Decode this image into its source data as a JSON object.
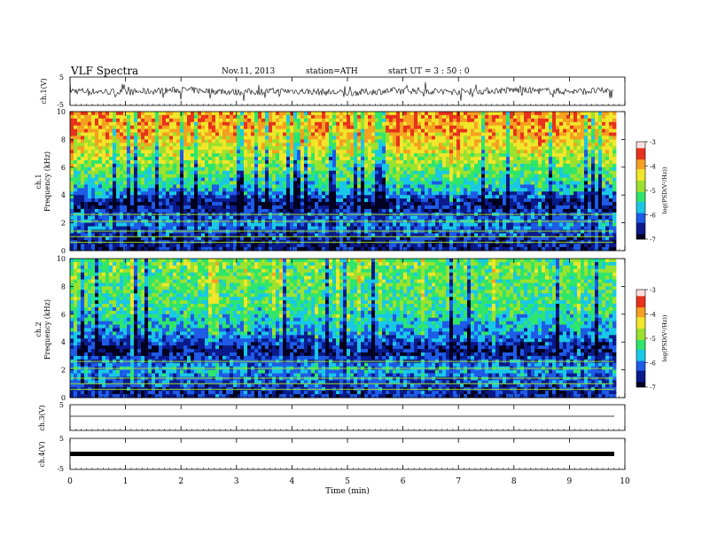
{
  "header": {
    "title": "VLF  Spectra",
    "date": "Nov.11, 2013",
    "station": "station=ATH",
    "start": "start  UT  =   3 : 50 : 0"
  },
  "colors": {
    "colormap": [
      "#000020",
      "#0a1a8a",
      "#1e5be6",
      "#19c8e6",
      "#2ee66b",
      "#9be22e",
      "#f0e62a",
      "#f5a020",
      "#e8321c",
      "#ffffff"
    ],
    "trace": "#000000"
  },
  "chart_data": [
    {
      "type": "line",
      "name": "ch1-waveform",
      "ylabel": "ch.1(V)",
      "ylim": [
        -5,
        5
      ],
      "yticks": [
        "-5",
        "5"
      ],
      "x": [
        0,
        1,
        2,
        3,
        4,
        5,
        6,
        7,
        8,
        9,
        9.8
      ],
      "y": [
        0.2,
        -0.4,
        0.5,
        -0.3,
        0.1,
        -0.6,
        0.3,
        -0.2,
        0.4,
        -0.1,
        0.2
      ]
    },
    {
      "type": "heatmap",
      "name": "ch1-spectrogram",
      "ylabel": "Frequency (kHz)",
      "sublabel": "ch.1",
      "ylim": [
        0,
        10
      ],
      "yticks": [
        "0",
        "2",
        "4",
        "6",
        "8",
        "10"
      ],
      "x_range_min": [
        0,
        9.8
      ],
      "colorbar": {
        "label": "log(PSD(V²/Hz))",
        "range": [
          -7,
          -3
        ],
        "ticks": [
          "-3",
          "-4",
          "-5",
          "-6",
          "-7"
        ]
      },
      "freq_bands_kHz": [
        0.5,
        1.2,
        2.0,
        3.4,
        4.5,
        6.5,
        8.5
      ],
      "band_log_psd": [
        -6.5,
        -6.2,
        -5.8,
        -6.6,
        -5.4,
        -4.5,
        -3.6
      ]
    },
    {
      "type": "heatmap",
      "name": "ch2-spectrogram",
      "ylabel": "Frequency (kHz)",
      "sublabel": "ch.2",
      "ylim": [
        0,
        10
      ],
      "yticks": [
        "0",
        "2",
        "4",
        "6",
        "8",
        "10"
      ],
      "x_range_min": [
        0,
        9.8
      ],
      "colorbar": {
        "label": "log(PSD(V²/Hz))",
        "range": [
          -7,
          -3
        ],
        "ticks": [
          "-3",
          "-4",
          "-5",
          "-6",
          "-7"
        ]
      },
      "freq_bands_kHz": [
        0.5,
        1.2,
        2.0,
        3.4,
        4.5,
        6.5,
        8.5
      ],
      "band_log_psd": [
        -6.4,
        -6.0,
        -5.6,
        -6.7,
        -5.8,
        -5.1,
        -4.8
      ]
    },
    {
      "type": "line",
      "name": "ch3-waveform",
      "ylabel": "ch.3(V)",
      "ylim": [
        -5,
        5
      ],
      "yticks": [
        "5"
      ],
      "x": [
        0,
        9.8
      ],
      "y": [
        0,
        0
      ]
    },
    {
      "type": "line",
      "name": "ch4-waveform",
      "ylabel": "ch.4(V)",
      "ylim": [
        -5,
        5
      ],
      "yticks": [
        "5",
        "-5"
      ],
      "x": [
        0,
        9.8
      ],
      "y": [
        0,
        0
      ]
    }
  ],
  "xaxis": {
    "label": "Time  (min)",
    "range": [
      0,
      10
    ],
    "ticks": [
      "0",
      "1",
      "2",
      "3",
      "4",
      "5",
      "6",
      "7",
      "8",
      "9",
      "10"
    ]
  }
}
